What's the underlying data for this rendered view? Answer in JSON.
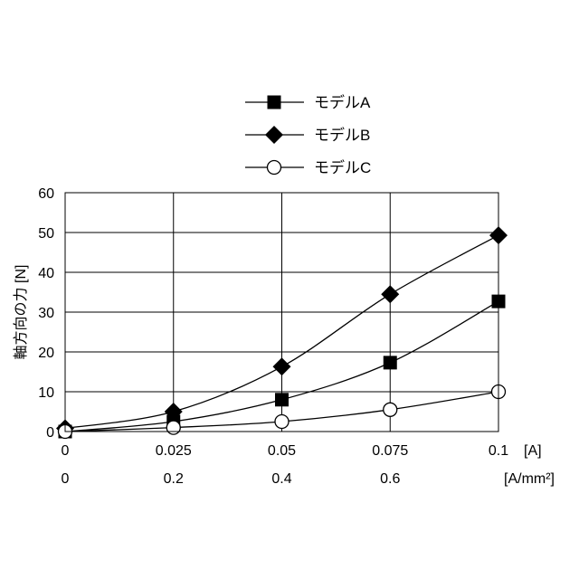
{
  "chart_data": {
    "type": "line",
    "title": "",
    "ylabel": "軸方向の力 [N]",
    "xlabel": "",
    "x_unit_label": "[A]",
    "x2_unit_label": "[A/mm²]",
    "x": [
      0,
      0.025,
      0.05,
      0.075,
      0.1
    ],
    "x_tick_labels": [
      "0",
      "0.025",
      "0.05",
      "0.075",
      "0.1"
    ],
    "x2_tick_labels": [
      "0",
      "0.2",
      "0.4",
      "0.6"
    ],
    "x2_tick_values": [
      0,
      0.2,
      0.4,
      0.6
    ],
    "x2_max": 0.8,
    "xlim": [
      0,
      0.1
    ],
    "ylim": [
      0,
      60
    ],
    "y_ticks": [
      0,
      10,
      20,
      30,
      40,
      50,
      60
    ],
    "grid": true,
    "legend_position": "top-center",
    "series": [
      {
        "name": "モデルA",
        "marker": "square",
        "values": [
          0,
          2.5,
          8,
          17.3,
          32.7
        ]
      },
      {
        "name": "モデルB",
        "marker": "diamond",
        "values": [
          0.8,
          5,
          16.3,
          34.5,
          49.3
        ]
      },
      {
        "name": "モデルC",
        "marker": "circle-open",
        "values": [
          0,
          1,
          2.5,
          5.5,
          10
        ]
      }
    ]
  }
}
